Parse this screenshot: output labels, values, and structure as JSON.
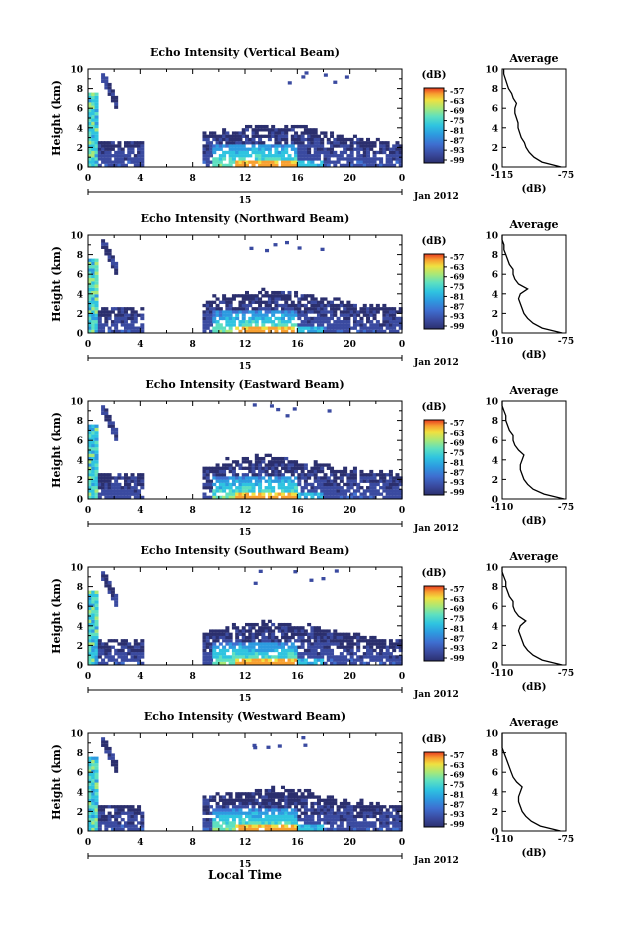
{
  "figure": {
    "xlabel": "Local Time",
    "ylabel": "Height (km)",
    "date_label": "Jan 2012",
    "day_label": "15",
    "x_ticks": [
      "0",
      "4",
      "8",
      "12",
      "16",
      "20",
      "0"
    ],
    "y_ticks": [
      "0",
      "2",
      "4",
      "6",
      "8",
      "10"
    ],
    "colorbar_title": "(dB)",
    "colorbar_ticks": [
      "-57",
      "-63",
      "-69",
      "-75",
      "-81",
      "-87",
      "-93",
      "-99"
    ],
    "avg_title": "Average",
    "avg_xlabel": "(dB)"
  },
  "chart_data": [
    {
      "type": "heatmap",
      "title": "Echo Intensity (Vertical Beam)",
      "xlabel": "",
      "ylabel": "Height (km)",
      "xlim": [
        0,
        24
      ],
      "ylim": [
        0,
        10
      ],
      "clim": [
        -99,
        -57
      ],
      "avg_profile": {
        "xlim": [
          -115,
          -75
        ],
        "x_ticks": [
          "-115",
          "-75"
        ],
        "height_km": [
          0,
          0.5,
          1,
          1.5,
          2,
          2.5,
          3,
          3.5,
          4,
          4.5,
          5,
          5.5,
          6,
          6.5,
          7,
          7.5,
          8,
          8.5,
          9,
          9.5,
          10
        ],
        "db": [
          -78,
          -90,
          -95,
          -98,
          -100,
          -101,
          -103,
          -104,
          -105,
          -105,
          -106,
          -107,
          -107,
          -106,
          -108,
          -109,
          -111,
          -112,
          -113,
          -114,
          -114
        ]
      }
    },
    {
      "type": "heatmap",
      "title": "Echo Intensity (Northward Beam)",
      "xlabel": "",
      "ylabel": "Height (km)",
      "xlim": [
        0,
        24
      ],
      "ylim": [
        0,
        10
      ],
      "clim": [
        -99,
        -57
      ],
      "avg_profile": {
        "xlim": [
          -110,
          -75
        ],
        "x_ticks": [
          "-110",
          "-75"
        ],
        "height_km": [
          0,
          0.5,
          1,
          1.5,
          2,
          2.5,
          3,
          3.5,
          4,
          4.5,
          5,
          5.5,
          6,
          6.5,
          7,
          7.5,
          8,
          8.5,
          9,
          9.5,
          10
        ],
        "db": [
          -77,
          -88,
          -93,
          -96,
          -98,
          -99,
          -100,
          -101,
          -100,
          -96,
          -101,
          -103,
          -104,
          -104,
          -106,
          -107,
          -108,
          -109,
          -109,
          -110,
          -110
        ]
      }
    },
    {
      "type": "heatmap",
      "title": "Echo Intensity (Eastward Beam)",
      "xlabel": "",
      "ylabel": "Height (km)",
      "xlim": [
        0,
        24
      ],
      "ylim": [
        0,
        10
      ],
      "clim": [
        -99,
        -57
      ],
      "avg_profile": {
        "xlim": [
          -110,
          -75
        ],
        "x_ticks": [
          "-110",
          "-75"
        ],
        "height_km": [
          0,
          0.5,
          1,
          1.5,
          2,
          2.5,
          3,
          3.5,
          4,
          4.5,
          5,
          5.5,
          6,
          6.5,
          7,
          7.5,
          8,
          8.5,
          9,
          9.5,
          10
        ],
        "db": [
          -76,
          -87,
          -93,
          -96,
          -98,
          -99,
          -100,
          -100,
          -99,
          -98,
          -101,
          -103,
          -104,
          -104,
          -106,
          -107,
          -108,
          -108,
          -109,
          -110,
          -110
        ]
      }
    },
    {
      "type": "heatmap",
      "title": "Echo Intensity (Southward Beam)",
      "xlabel": "",
      "ylabel": "Height (km)",
      "xlim": [
        0,
        24
      ],
      "ylim": [
        0,
        10
      ],
      "clim": [
        -99,
        -57
      ],
      "avg_profile": {
        "xlim": [
          -110,
          -75
        ],
        "x_ticks": [
          "-110",
          "-75"
        ],
        "height_km": [
          0,
          0.5,
          1,
          1.5,
          2,
          2.5,
          3,
          3.5,
          4,
          4.5,
          5,
          5.5,
          6,
          6.5,
          7,
          7.5,
          8,
          8.5,
          9,
          9.5,
          10
        ],
        "db": [
          -77,
          -88,
          -93,
          -96,
          -98,
          -99,
          -100,
          -101,
          -100,
          -97,
          -101,
          -103,
          -104,
          -104,
          -106,
          -107,
          -108,
          -108,
          -109,
          -110,
          -110
        ]
      }
    },
    {
      "type": "heatmap",
      "title": "Echo Intensity (Westward Beam)",
      "xlabel": "Local Time",
      "ylabel": "Height (km)",
      "xlim": [
        0,
        24
      ],
      "ylim": [
        0,
        10
      ],
      "clim": [
        -99,
        -57
      ],
      "avg_profile": {
        "xlim": [
          -110,
          -75
        ],
        "x_ticks": [
          "-110",
          "-75"
        ],
        "height_km": [
          0,
          0.5,
          1,
          1.5,
          2,
          2.5,
          3,
          3.5,
          4,
          4.5,
          5,
          5.5,
          6,
          6.5,
          7,
          7.5,
          8,
          8.5,
          9,
          9.5,
          10
        ],
        "db": [
          -78,
          -89,
          -94,
          -97,
          -99,
          -100,
          -101,
          -101,
          -100,
          -99,
          -102,
          -104,
          -105,
          -106,
          -107,
          -108,
          -109,
          -110,
          -110,
          -110,
          -110
        ]
      }
    }
  ],
  "colors": {
    "colormap": [
      "#2b2f6e",
      "#3a4aa0",
      "#3e6fd0",
      "#2d9be0",
      "#2fc4e0",
      "#5ee0c0",
      "#a8e878",
      "#f0e040",
      "#f8a030",
      "#e83a20"
    ]
  }
}
